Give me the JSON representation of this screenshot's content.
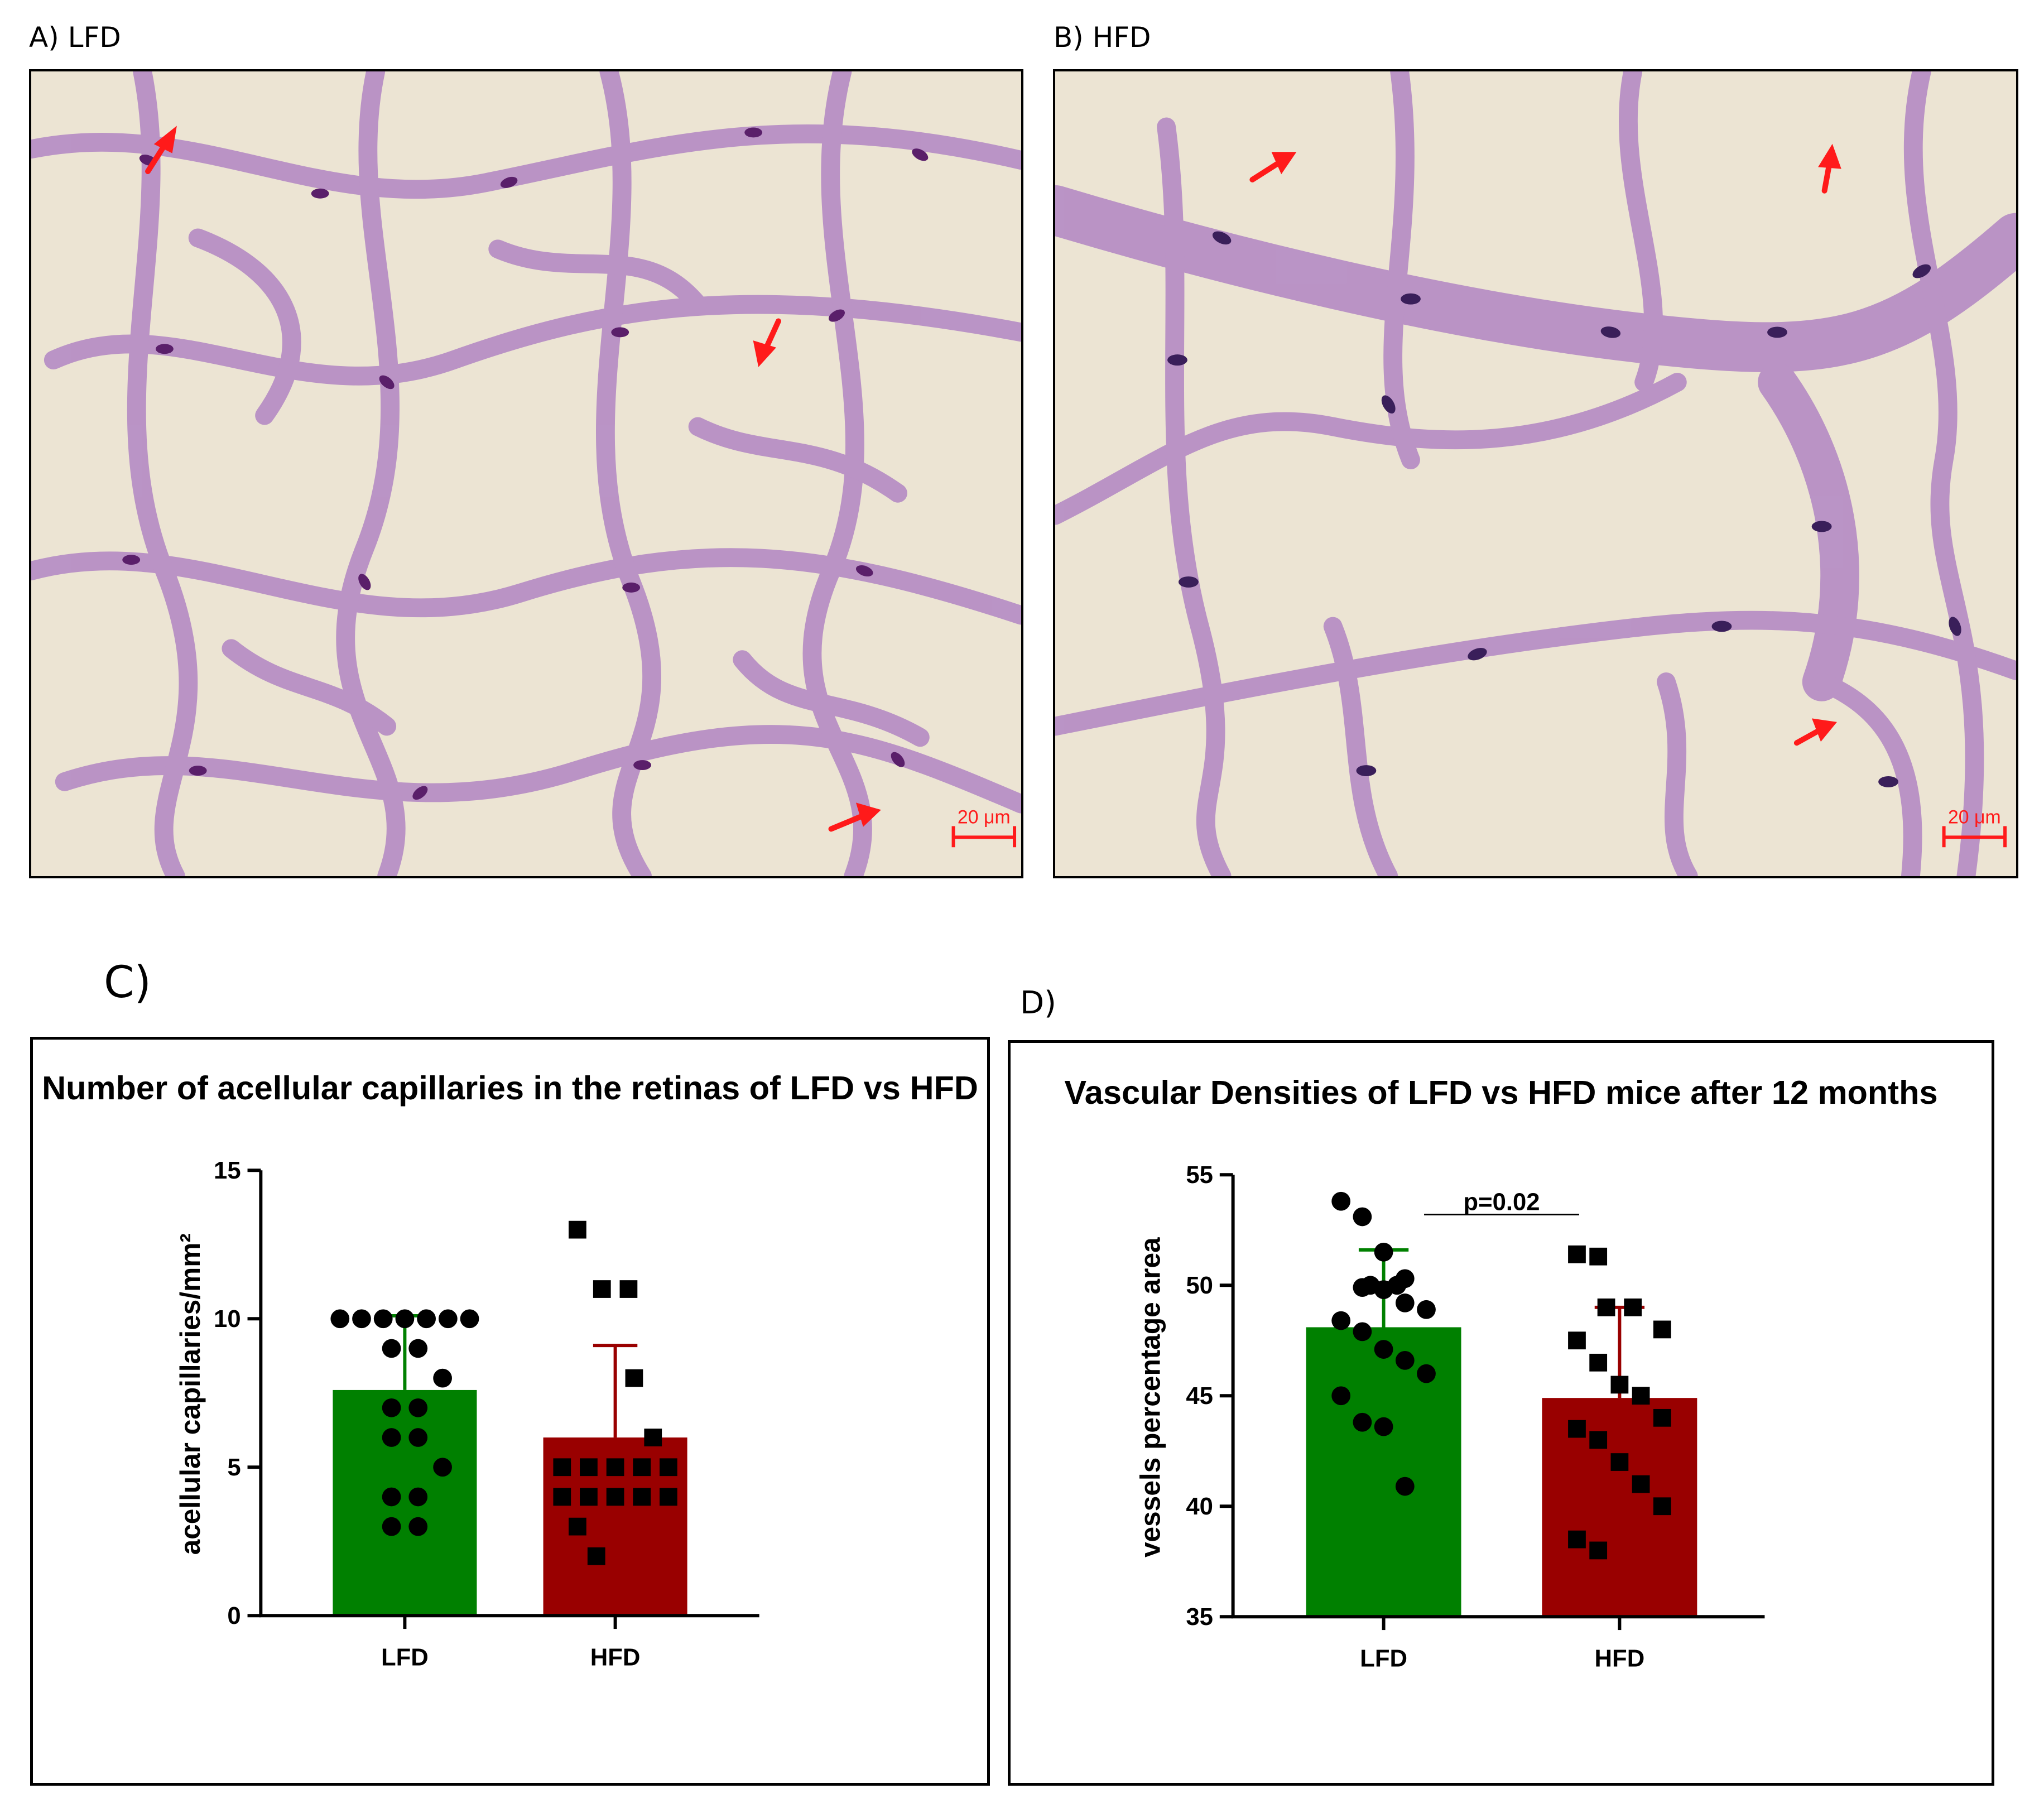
{
  "panels": {
    "a": {
      "label": "A) LFD",
      "scale_bar": "20 μm"
    },
    "b": {
      "label": "B) HFD",
      "scale_bar": "20 μm"
    },
    "c": {
      "label": "C)"
    },
    "d": {
      "label": "D)"
    }
  },
  "colors": {
    "lfd": "#008000",
    "hfd": "#990000",
    "arrow": "#ff1a1a",
    "stain": "#b58bc4",
    "nucleus": "#5a1f6a",
    "tissue": "#ece4d3"
  },
  "chart_data": [
    {
      "type": "bar",
      "title": "Number of acellular capillaries in the retinas of LFD vs HFD",
      "ylabel": "acellular capillaries/mm²",
      "xlabel": "",
      "categories": [
        "LFD",
        "HFD"
      ],
      "ylim": [
        0,
        15
      ],
      "yticks": [
        0,
        5,
        10,
        15
      ],
      "values": [
        7.6,
        6.0
      ],
      "error_upper": [
        10.1,
        9.1
      ],
      "points": [
        [
          10,
          10,
          10,
          10,
          10,
          10,
          10,
          9,
          9,
          8,
          7,
          7,
          6,
          6,
          5,
          4,
          4,
          3,
          3
        ],
        [
          13,
          11,
          11,
          8,
          6,
          5,
          5,
          5,
          5,
          5,
          4,
          4,
          4,
          4,
          4,
          3,
          2
        ]
      ],
      "grid": false,
      "legend": "none"
    },
    {
      "type": "bar",
      "title": "Vascular Densities of LFD vs HFD mice after 12 months",
      "ylabel": "vessels percentage area",
      "xlabel": "",
      "categories": [
        "LFD",
        "HFD"
      ],
      "ylim": [
        35,
        55
      ],
      "yticks": [
        35,
        40,
        45,
        50,
        55
      ],
      "values": [
        48.1,
        44.9
      ],
      "error_upper": [
        51.6,
        49.0
      ],
      "annotation": "p=0.02",
      "points": [
        [
          53.8,
          53.1,
          51.5,
          50.3,
          50.0,
          50.0,
          49.9,
          49.8,
          49.2,
          48.9,
          48.4,
          47.9,
          47.1,
          46.6,
          46.0,
          45.0,
          43.8,
          43.6,
          40.9
        ],
        [
          51.4,
          51.3,
          49.0,
          49.0,
          48.0,
          47.5,
          46.5,
          45.5,
          45.0,
          44.0,
          43.5,
          43.0,
          42.0,
          41.0,
          40.0,
          38.5,
          38.0
        ]
      ],
      "grid": false,
      "legend": "none"
    }
  ]
}
